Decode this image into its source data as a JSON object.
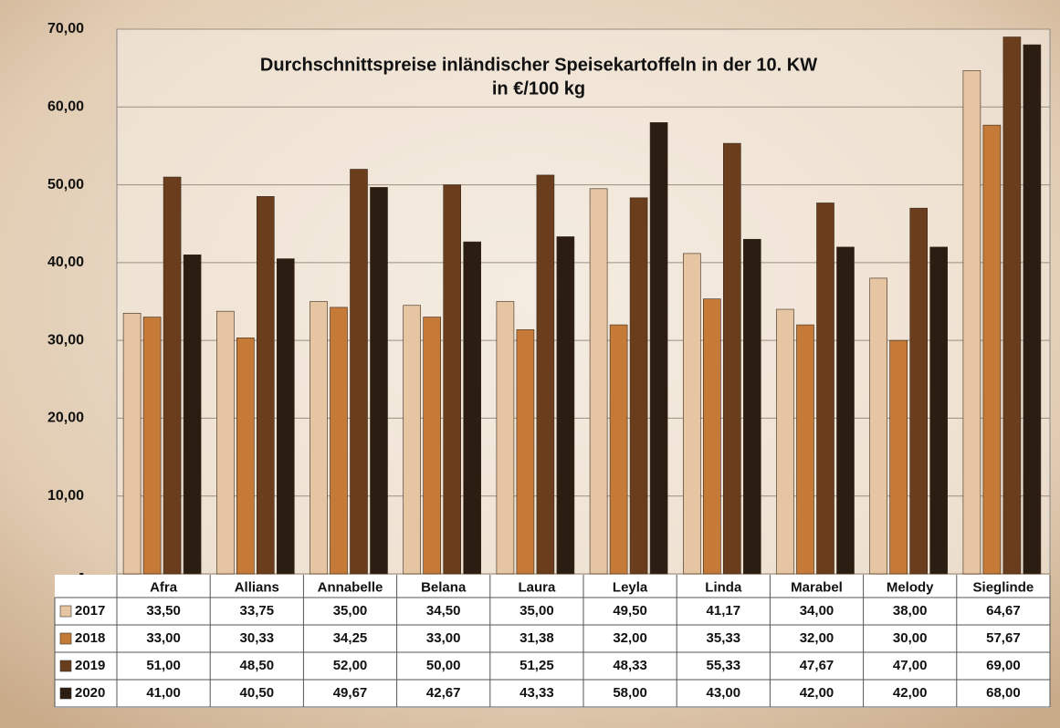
{
  "chart_data": {
    "type": "bar",
    "title": "Durchschnittspreise inländischer Speisekartoffeln in der 10. KW",
    "subtitle": "in €/100 kg",
    "categories": [
      "Afra",
      "Allians",
      "Annabelle",
      "Belana",
      "Laura",
      "Leyla",
      "Linda",
      "Marabel",
      "Melody",
      "Sieglinde"
    ],
    "series": [
      {
        "name": "2017",
        "color": "#e6c6a2",
        "values": [
          33.5,
          33.75,
          35,
          34.5,
          35,
          49.5,
          41.17,
          34,
          38,
          64.67
        ],
        "value_labels": [
          "33,50",
          "33,75",
          "35,00",
          "34,50",
          "35,00",
          "49,50",
          "41,17",
          "34,00",
          "38,00",
          "64,67"
        ]
      },
      {
        "name": "2018",
        "color": "#c67a38",
        "values": [
          33,
          30.33,
          34.25,
          33,
          31.38,
          32,
          35.33,
          32,
          30,
          57.67
        ],
        "value_labels": [
          "33,00",
          "30,33",
          "34,25",
          "33,00",
          "31,38",
          "32,00",
          "35,33",
          "32,00",
          "30,00",
          "57,67"
        ]
      },
      {
        "name": "2019",
        "color": "#6a3d1c",
        "values": [
          51,
          48.5,
          52,
          50,
          51.25,
          48.33,
          55.33,
          47.67,
          47,
          69
        ],
        "value_labels": [
          "51,00",
          "48,50",
          "52,00",
          "50,00",
          "51,25",
          "48,33",
          "55,33",
          "47,67",
          "47,00",
          "69,00"
        ]
      },
      {
        "name": "2020",
        "color": "#2c1d12",
        "values": [
          41,
          40.5,
          49.67,
          42.67,
          43.33,
          58,
          43,
          42,
          42,
          68
        ],
        "value_labels": [
          "41,00",
          "40,50",
          "49,67",
          "42,67",
          "43,33",
          "58,00",
          "43,00",
          "42,00",
          "42,00",
          "68,00"
        ]
      }
    ],
    "ylim": [
      0,
      70
    ],
    "yticks": [
      {
        "value": 0,
        "label": "-"
      },
      {
        "value": 10,
        "label": "10,00"
      },
      {
        "value": 20,
        "label": "20,00"
      },
      {
        "value": 30,
        "label": "30,00"
      },
      {
        "value": 40,
        "label": "40,00"
      },
      {
        "value": 50,
        "label": "50,00"
      },
      {
        "value": 60,
        "label": "60,00"
      },
      {
        "value": 70,
        "label": "70,00"
      }
    ],
    "grid": true
  }
}
